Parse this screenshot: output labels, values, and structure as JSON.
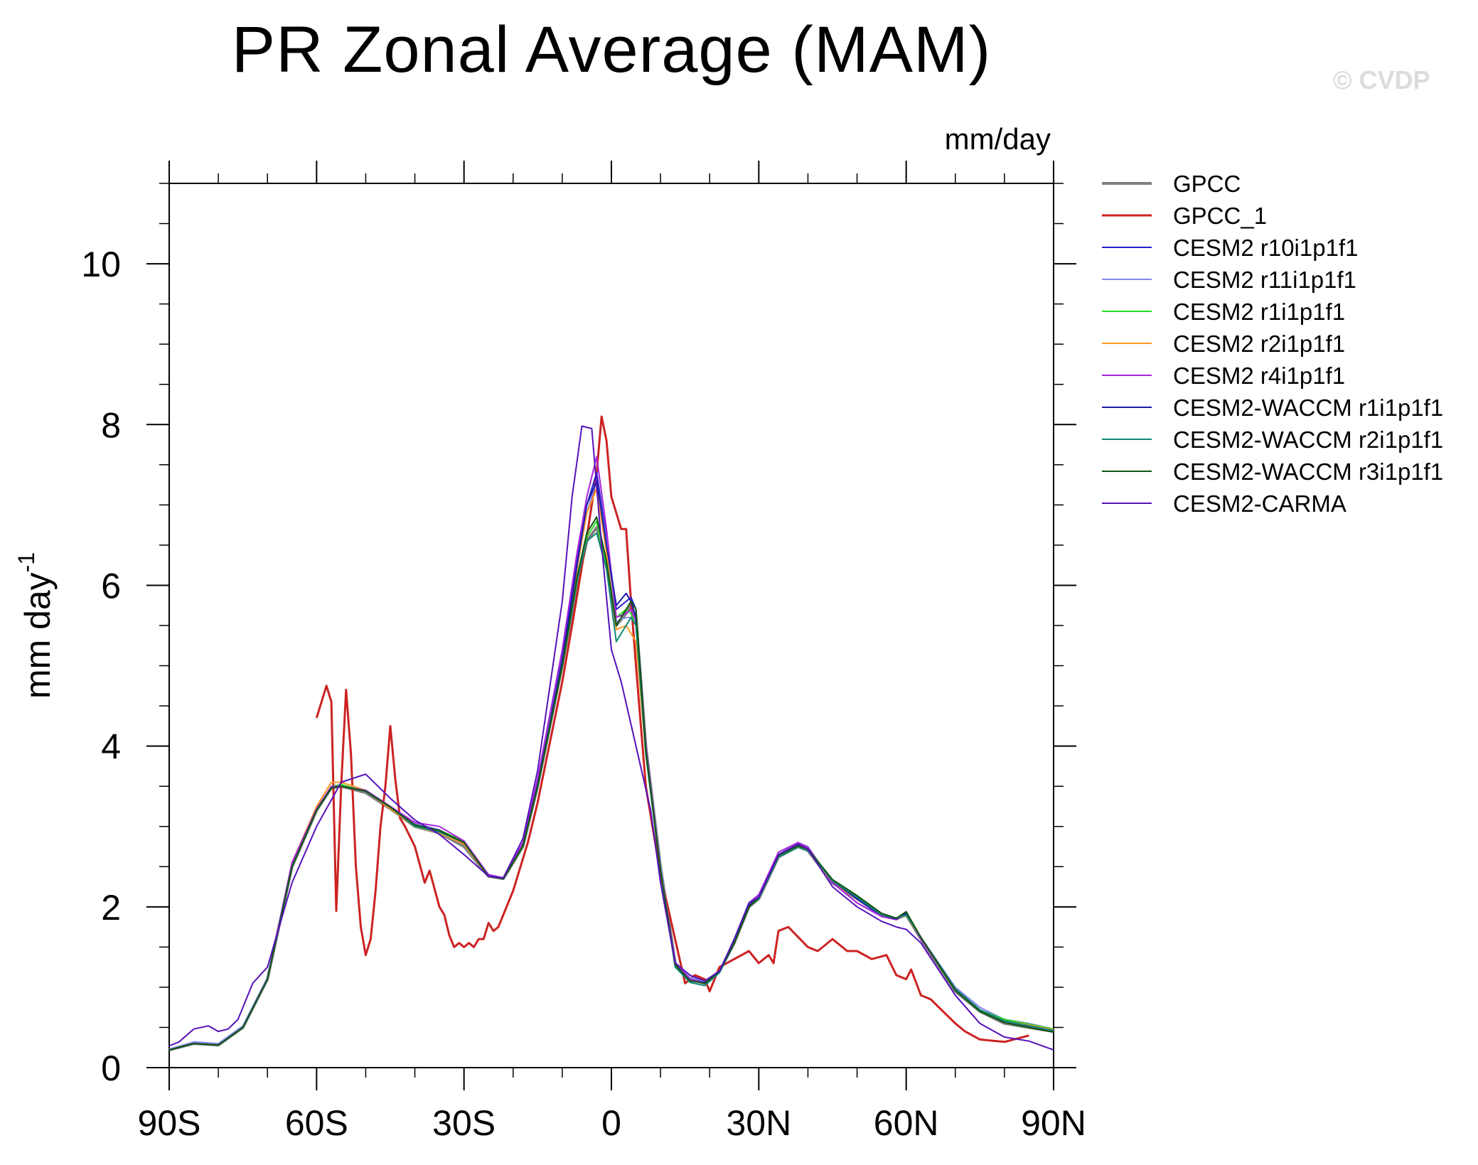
{
  "title": "PR Zonal Average (MAM)",
  "watermark": "© CVDP",
  "chart_data": {
    "type": "line",
    "title": "PR Zonal Average (MAM)",
    "units_label": "mm/day",
    "ylabel": "mm day",
    "ylabel_superscript": "-1",
    "xlabel": "",
    "xlim": [
      -90,
      90
    ],
    "ylim": [
      0,
      11
    ],
    "x_ticks": [
      -90,
      -60,
      -30,
      0,
      30,
      60,
      90
    ],
    "x_tick_labels": [
      "90S",
      "60S",
      "30S",
      "0",
      "30N",
      "60N",
      "90N"
    ],
    "y_ticks": [
      0,
      2,
      4,
      6,
      8,
      10
    ],
    "y_tick_labels": [
      "0",
      "2",
      "4",
      "6",
      "8",
      "10"
    ],
    "grid": false,
    "legend_position": "right",
    "series": [
      {
        "name": "GPCC",
        "color": "#808080",
        "width": 4,
        "x": [
          -90,
          -85,
          -80,
          -75,
          -70,
          -65,
          -60,
          -57,
          -55,
          -50,
          -45,
          -40,
          -35,
          -30,
          -25,
          -22,
          -18,
          -15,
          -10,
          -7,
          -5,
          -3,
          -1,
          1,
          3,
          4,
          5,
          7,
          10,
          13,
          16,
          19,
          22,
          25,
          28,
          30,
          34,
          38,
          40,
          45,
          50,
          55,
          58,
          60,
          63,
          70,
          75,
          80,
          85,
          90
        ],
        "y": [
          0.22,
          0.3,
          0.28,
          0.5,
          1.1,
          2.5,
          3.2,
          3.48,
          3.5,
          3.42,
          3.22,
          3.0,
          2.92,
          2.75,
          2.38,
          2.35,
          2.75,
          3.5,
          5.0,
          6.0,
          6.55,
          6.72,
          6.3,
          5.5,
          5.65,
          5.75,
          5.6,
          4.0,
          2.5,
          1.3,
          1.1,
          1.05,
          1.2,
          1.55,
          2.0,
          2.1,
          2.62,
          2.75,
          2.7,
          2.3,
          2.1,
          1.9,
          1.85,
          1.9,
          1.6,
          0.95,
          0.7,
          0.55,
          0.5,
          0.45
        ]
      },
      {
        "name": "GPCC_1",
        "color": "#cc2222",
        "width": 3,
        "x": [
          -60,
          -58,
          -57,
          -56,
          -55,
          -54,
          -53,
          -52,
          -51,
          -50,
          -49,
          -48,
          -47,
          -46,
          -45,
          -44,
          -43,
          -42,
          -40,
          -38,
          -37,
          -35,
          -34,
          -33,
          -32,
          -31,
          -30,
          -29,
          -28,
          -27,
          -26,
          -25,
          -24,
          -23,
          -20,
          -17,
          -15,
          -10,
          -8,
          -5,
          -3,
          -2,
          -1,
          0,
          1,
          2,
          3,
          4,
          5,
          7,
          10,
          15,
          17,
          19,
          20,
          22,
          25,
          28,
          30,
          32,
          33,
          34,
          36,
          40,
          42,
          45,
          48,
          50,
          53,
          56,
          58,
          60,
          61,
          63,
          65,
          70,
          72,
          75,
          80,
          85
        ],
        "y": [
          4.35,
          4.75,
          4.55,
          1.95,
          3.5,
          4.7,
          3.9,
          2.5,
          1.75,
          1.4,
          1.6,
          2.2,
          3.0,
          3.5,
          4.25,
          3.6,
          3.1,
          3.0,
          2.75,
          2.3,
          2.45,
          2.0,
          1.9,
          1.65,
          1.5,
          1.55,
          1.5,
          1.55,
          1.5,
          1.6,
          1.6,
          1.8,
          1.7,
          1.75,
          2.2,
          2.8,
          3.3,
          4.8,
          5.5,
          6.6,
          7.4,
          8.1,
          7.8,
          7.1,
          6.9,
          6.7,
          6.7,
          5.8,
          5.0,
          3.5,
          2.4,
          1.05,
          1.15,
          1.1,
          0.95,
          1.25,
          1.35,
          1.45,
          1.3,
          1.4,
          1.3,
          1.7,
          1.75,
          1.5,
          1.45,
          1.6,
          1.45,
          1.45,
          1.35,
          1.4,
          1.15,
          1.1,
          1.22,
          0.9,
          0.85,
          0.55,
          0.45,
          0.35,
          0.32,
          0.4
        ]
      },
      {
        "name": "CESM2 r10i1p1f1",
        "color": "#2222cc",
        "width": 2,
        "x": [
          -90,
          -85,
          -80,
          -75,
          -70,
          -65,
          -60,
          -57,
          -55,
          -50,
          -45,
          -40,
          -35,
          -30,
          -25,
          -22,
          -18,
          -15,
          -10,
          -7,
          -5,
          -3,
          -1,
          1,
          3,
          4,
          5,
          7,
          10,
          13,
          16,
          19,
          22,
          25,
          28,
          30,
          34,
          38,
          40,
          45,
          50,
          55,
          58,
          60,
          63,
          70,
          75,
          80,
          85,
          90
        ],
        "y": [
          0.22,
          0.3,
          0.28,
          0.5,
          1.1,
          2.55,
          3.22,
          3.48,
          3.5,
          3.45,
          3.25,
          3.02,
          2.95,
          2.78,
          2.4,
          2.36,
          2.78,
          3.55,
          5.1,
          6.3,
          7.0,
          7.4,
          6.6,
          5.7,
          5.8,
          5.85,
          5.7,
          4.0,
          2.45,
          1.3,
          1.1,
          1.06,
          1.18,
          1.55,
          2.05,
          2.15,
          2.65,
          2.78,
          2.72,
          2.3,
          2.1,
          1.88,
          1.85,
          1.9,
          1.6,
          0.98,
          0.72,
          0.58,
          0.52,
          0.46
        ]
      },
      {
        "name": "CESM2 r11i1p1f1",
        "color": "#8888ee",
        "width": 2,
        "x": [
          -90,
          -85,
          -80,
          -75,
          -70,
          -65,
          -60,
          -57,
          -55,
          -50,
          -45,
          -40,
          -35,
          -30,
          -25,
          -22,
          -18,
          -15,
          -10,
          -7,
          -5,
          -3,
          -1,
          1,
          3,
          4,
          5,
          7,
          10,
          13,
          16,
          19,
          22,
          25,
          28,
          30,
          34,
          38,
          40,
          45,
          50,
          55,
          58,
          60,
          63,
          70,
          75,
          80,
          85,
          90
        ],
        "y": [
          0.23,
          0.32,
          0.3,
          0.52,
          1.12,
          2.55,
          3.22,
          3.48,
          3.52,
          3.44,
          3.24,
          3.04,
          2.96,
          2.8,
          2.4,
          2.36,
          2.78,
          3.55,
          5.05,
          6.2,
          6.9,
          7.3,
          6.55,
          5.55,
          5.6,
          5.6,
          5.5,
          4.0,
          2.5,
          1.3,
          1.12,
          1.08,
          1.2,
          1.55,
          2.05,
          2.12,
          2.65,
          2.8,
          2.75,
          2.3,
          2.05,
          1.88,
          1.85,
          1.9,
          1.62,
          1.0,
          0.75,
          0.6,
          0.55,
          0.48
        ]
      },
      {
        "name": "CESM2 r1i1p1f1",
        "color": "#22dd22",
        "width": 2,
        "x": [
          -90,
          -85,
          -80,
          -75,
          -70,
          -65,
          -60,
          -57,
          -55,
          -50,
          -45,
          -40,
          -35,
          -30,
          -25,
          -22,
          -18,
          -15,
          -10,
          -7,
          -5,
          -3,
          -1,
          1,
          3,
          4,
          5,
          7,
          10,
          13,
          16,
          19,
          22,
          25,
          28,
          30,
          34,
          38,
          40,
          45,
          50,
          55,
          58,
          60,
          63,
          70,
          75,
          80,
          85,
          90
        ],
        "y": [
          0.22,
          0.3,
          0.28,
          0.5,
          1.1,
          2.5,
          3.2,
          3.5,
          3.52,
          3.44,
          3.25,
          3.0,
          2.95,
          2.82,
          2.38,
          2.35,
          2.75,
          3.5,
          5.0,
          6.05,
          6.6,
          6.8,
          6.2,
          5.6,
          5.7,
          5.65,
          5.5,
          3.9,
          2.45,
          1.25,
          1.08,
          1.05,
          1.2,
          1.55,
          2.0,
          2.12,
          2.65,
          2.78,
          2.72,
          2.32,
          2.12,
          1.9,
          1.86,
          1.92,
          1.62,
          0.98,
          0.72,
          0.6,
          0.54,
          0.48
        ]
      },
      {
        "name": "CESM2 r2i1p1f1",
        "color": "#ff9922",
        "width": 2,
        "x": [
          -90,
          -85,
          -80,
          -75,
          -70,
          -65,
          -60,
          -57,
          -55,
          -50,
          -45,
          -40,
          -35,
          -30,
          -25,
          -22,
          -18,
          -15,
          -10,
          -7,
          -5,
          -3,
          -1,
          1,
          3,
          4,
          5,
          7,
          10,
          13,
          16,
          19,
          22,
          25,
          28,
          30,
          34,
          38,
          40,
          45,
          50,
          55,
          58,
          60,
          63,
          70,
          75,
          80,
          85,
          90
        ],
        "y": [
          0.22,
          0.3,
          0.28,
          0.5,
          1.1,
          2.55,
          3.25,
          3.55,
          3.55,
          3.45,
          3.22,
          3.0,
          2.92,
          2.78,
          2.38,
          2.35,
          2.76,
          3.52,
          5.05,
          6.2,
          6.9,
          7.2,
          6.4,
          5.45,
          5.5,
          5.4,
          5.3,
          3.9,
          2.45,
          1.28,
          1.1,
          1.05,
          1.2,
          1.55,
          2.02,
          2.12,
          2.62,
          2.76,
          2.7,
          2.3,
          2.1,
          1.9,
          1.85,
          1.9,
          1.6,
          0.98,
          0.72,
          0.58,
          0.53,
          0.47
        ]
      },
      {
        "name": "CESM2 r4i1p1f1",
        "color": "#aa22dd",
        "width": 2,
        "x": [
          -90,
          -85,
          -80,
          -75,
          -70,
          -65,
          -60,
          -57,
          -55,
          -50,
          -45,
          -40,
          -35,
          -30,
          -25,
          -22,
          -18,
          -15,
          -10,
          -7,
          -5,
          -3,
          -1,
          1,
          3,
          4,
          5,
          7,
          10,
          13,
          16,
          19,
          22,
          25,
          28,
          30,
          34,
          38,
          40,
          45,
          50,
          55,
          58,
          60,
          63,
          70,
          75,
          80,
          85,
          90
        ],
        "y": [
          0.22,
          0.3,
          0.28,
          0.5,
          1.1,
          2.55,
          3.22,
          3.5,
          3.5,
          3.45,
          3.25,
          3.05,
          3.0,
          2.82,
          2.4,
          2.36,
          2.8,
          3.6,
          5.2,
          6.4,
          7.1,
          7.6,
          6.7,
          5.6,
          5.65,
          5.7,
          5.55,
          4.0,
          2.45,
          1.3,
          1.1,
          1.05,
          1.18,
          1.55,
          2.05,
          2.15,
          2.68,
          2.8,
          2.74,
          2.3,
          2.05,
          1.88,
          1.84,
          1.92,
          1.6,
          0.98,
          0.72,
          0.58,
          0.52,
          0.46
        ]
      },
      {
        "name": "CESM2-WACCM r1i1p1f1",
        "color": "#1a1aaa",
        "width": 2,
        "x": [
          -90,
          -85,
          -80,
          -75,
          -70,
          -65,
          -60,
          -57,
          -55,
          -50,
          -45,
          -40,
          -35,
          -30,
          -25,
          -22,
          -18,
          -15,
          -10,
          -7,
          -5,
          -3,
          -1,
          1,
          3,
          4,
          5,
          7,
          10,
          13,
          16,
          19,
          22,
          25,
          28,
          30,
          34,
          38,
          40,
          45,
          50,
          55,
          58,
          60,
          63,
          70,
          75,
          80,
          85,
          90
        ],
        "y": [
          0.22,
          0.3,
          0.28,
          0.5,
          1.1,
          2.5,
          3.2,
          3.48,
          3.5,
          3.44,
          3.24,
          3.02,
          2.95,
          2.8,
          2.38,
          2.35,
          2.76,
          3.52,
          5.05,
          6.25,
          7.0,
          7.3,
          6.5,
          5.75,
          5.9,
          5.8,
          5.6,
          3.95,
          2.45,
          1.28,
          1.08,
          1.05,
          1.18,
          1.55,
          2.02,
          2.12,
          2.64,
          2.77,
          2.72,
          2.32,
          2.1,
          1.9,
          1.85,
          1.92,
          1.62,
          0.98,
          0.72,
          0.58,
          0.52,
          0.46
        ]
      },
      {
        "name": "CESM2-WACCM r2i1p1f1",
        "color": "#118877",
        "width": 2,
        "x": [
          -90,
          -85,
          -80,
          -75,
          -70,
          -65,
          -60,
          -57,
          -55,
          -50,
          -45,
          -40,
          -35,
          -30,
          -25,
          -22,
          -18,
          -15,
          -10,
          -7,
          -5,
          -3,
          -1,
          1,
          3,
          4,
          5,
          7,
          10,
          13,
          16,
          19,
          22,
          25,
          28,
          30,
          34,
          38,
          40,
          45,
          50,
          55,
          58,
          60,
          63,
          70,
          75,
          80,
          85,
          90
        ],
        "y": [
          0.22,
          0.3,
          0.28,
          0.5,
          1.1,
          2.5,
          3.2,
          3.48,
          3.5,
          3.44,
          3.24,
          3.0,
          2.93,
          2.8,
          2.38,
          2.35,
          2.76,
          3.5,
          5.0,
          6.05,
          6.55,
          6.65,
          6.2,
          5.3,
          5.5,
          5.6,
          5.5,
          3.9,
          2.45,
          1.25,
          1.06,
          1.02,
          1.18,
          1.55,
          2.0,
          2.1,
          2.62,
          2.74,
          2.7,
          2.32,
          2.12,
          1.9,
          1.86,
          1.9,
          1.62,
          0.98,
          0.72,
          0.58,
          0.52,
          0.46
        ]
      },
      {
        "name": "CESM2-WACCM r3i1p1f1",
        "color": "#115511",
        "width": 2,
        "x": [
          -90,
          -85,
          -80,
          -75,
          -70,
          -65,
          -60,
          -57,
          -55,
          -50,
          -45,
          -40,
          -35,
          -30,
          -25,
          -22,
          -18,
          -15,
          -10,
          -7,
          -5,
          -3,
          -1,
          1,
          3,
          4,
          5,
          7,
          10,
          13,
          16,
          19,
          22,
          25,
          28,
          30,
          34,
          38,
          40,
          45,
          50,
          55,
          58,
          60,
          63,
          70,
          75,
          80,
          85,
          90
        ],
        "y": [
          0.22,
          0.3,
          0.28,
          0.5,
          1.1,
          2.5,
          3.2,
          3.48,
          3.5,
          3.44,
          3.24,
          3.02,
          2.95,
          2.8,
          2.38,
          2.35,
          2.76,
          3.5,
          5.0,
          6.1,
          6.65,
          6.85,
          6.3,
          5.5,
          5.7,
          5.8,
          5.7,
          3.95,
          2.45,
          1.28,
          1.08,
          1.05,
          1.2,
          1.55,
          2.0,
          2.12,
          2.64,
          2.76,
          2.72,
          2.34,
          2.14,
          1.92,
          1.86,
          1.94,
          1.62,
          0.96,
          0.7,
          0.56,
          0.5,
          0.44
        ]
      },
      {
        "name": "CESM2-CARMA",
        "color": "#5511bb",
        "width": 2,
        "x": [
          -90,
          -88,
          -85,
          -82,
          -80,
          -78,
          -76,
          -73,
          -70,
          -65,
          -60,
          -55,
          -50,
          -45,
          -40,
          -35,
          -30,
          -25,
          -22,
          -18,
          -15,
          -10,
          -8,
          -6,
          -4,
          -2,
          0,
          2,
          5,
          8,
          10,
          13,
          16,
          19,
          22,
          25,
          28,
          30,
          34,
          38,
          40,
          45,
          50,
          55,
          58,
          60,
          63,
          70,
          75,
          80,
          85,
          90
        ],
        "y": [
          0.27,
          0.32,
          0.48,
          0.52,
          0.45,
          0.48,
          0.6,
          1.05,
          1.25,
          2.3,
          3.0,
          3.55,
          3.65,
          3.35,
          3.08,
          2.9,
          2.65,
          2.38,
          2.36,
          2.85,
          3.7,
          5.8,
          7.1,
          7.98,
          7.95,
          6.5,
          5.2,
          4.8,
          4.0,
          3.2,
          2.3,
          1.3,
          1.15,
          1.08,
          1.2,
          1.6,
          2.05,
          2.12,
          2.65,
          2.78,
          2.72,
          2.25,
          2.0,
          1.82,
          1.75,
          1.72,
          1.55,
          0.9,
          0.55,
          0.38,
          0.33,
          0.22
        ]
      }
    ]
  }
}
